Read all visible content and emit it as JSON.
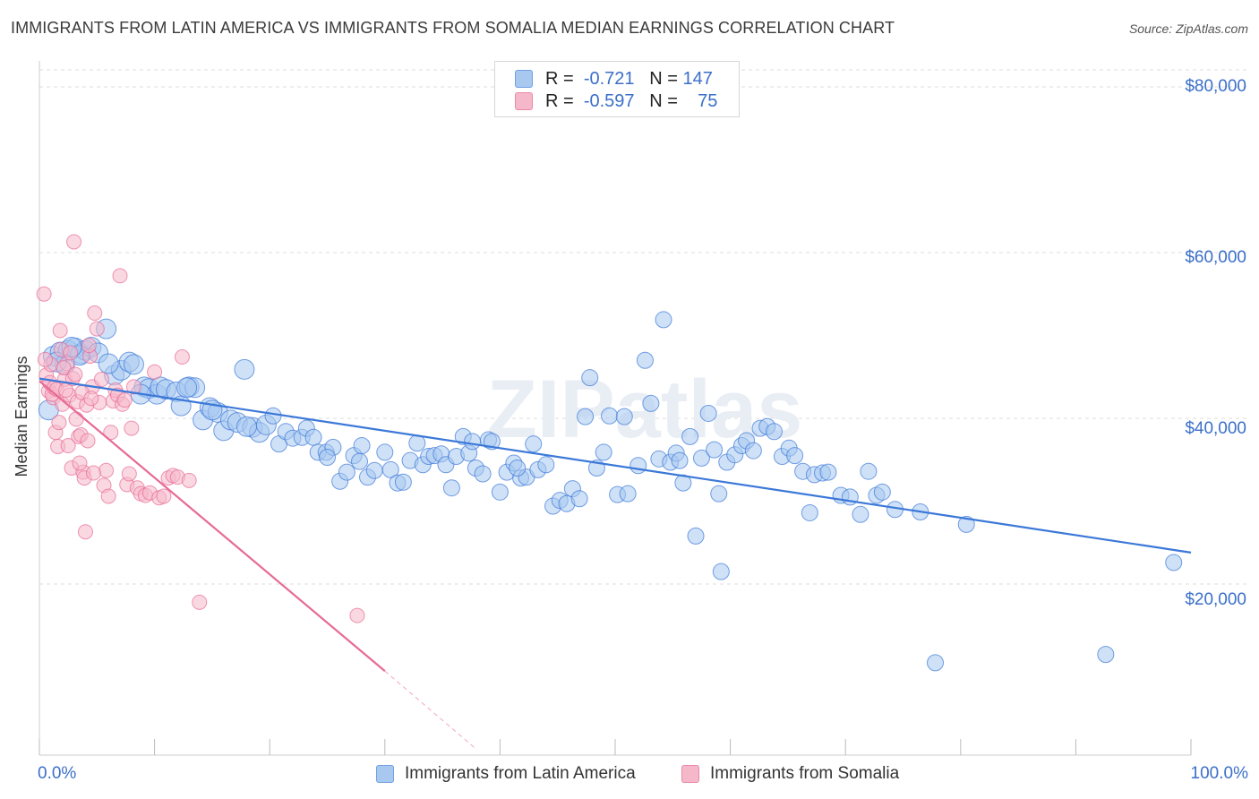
{
  "title": "IMMIGRANTS FROM LATIN AMERICA VS IMMIGRANTS FROM SOMALIA MEDIAN EARNINGS CORRELATION CHART",
  "source": "Source: ZipAtlas.com",
  "watermark": "ZIPatlas",
  "legend": {
    "rows": [
      {
        "r_label": "R =",
        "r_value": "-0.721",
        "n_label": "N =",
        "n_value": "147",
        "color": "#a8c8f0"
      },
      {
        "r_label": "R =",
        "r_value": "-0.597",
        "n_label": "N =",
        "n_value": "75",
        "color": "#f5b8cb"
      }
    ]
  },
  "bottom_legend": [
    {
      "label": "Immigrants from Latin America",
      "color": "#a8c8f0"
    },
    {
      "label": "Immigrants from Somalia",
      "color": "#f5b8cb"
    }
  ],
  "chart_data": {
    "type": "scatter",
    "title": "IMMIGRANTS FROM LATIN AMERICA VS IMMIGRANTS FROM SOMALIA MEDIAN EARNINGS CORRELATION CHART",
    "xlabel": "",
    "ylabel": "Median Earnings",
    "x_tick_labels": [
      "0.0%",
      "100.0%"
    ],
    "y_tick_labels": [
      "$20,000",
      "$40,000",
      "$60,000",
      "$80,000"
    ],
    "xlim": [
      0,
      100
    ],
    "ylim": [
      0,
      83000
    ],
    "grid": true,
    "legend_position": "top-center",
    "series": [
      {
        "name": "Immigrants from Latin America",
        "color": "#3b78d8",
        "fill": "#a8c8f0",
        "trend": {
          "x": [
            0,
            100
          ],
          "y": [
            44800,
            23800
          ]
        },
        "points": [
          [
            0.8,
            41000
          ],
          [
            1.2,
            47500
          ],
          [
            1.8,
            48000
          ],
          [
            2.2,
            46500
          ],
          [
            2.5,
            48200
          ],
          [
            3.1,
            48500
          ],
          [
            3.6,
            47800
          ],
          [
            4.0,
            48200
          ],
          [
            4.5,
            48600
          ],
          [
            5.1,
            47900
          ],
          [
            5.8,
            50800
          ],
          [
            6.5,
            45200
          ],
          [
            7.1,
            45800
          ],
          [
            7.8,
            46800
          ],
          [
            8.2,
            46500
          ],
          [
            9.1,
            43800
          ],
          [
            9.5,
            43600
          ],
          [
            10.2,
            42900
          ],
          [
            10.5,
            43800
          ],
          [
            11.0,
            43500
          ],
          [
            11.9,
            43200
          ],
          [
            12.3,
            41500
          ],
          [
            13.0,
            43800
          ],
          [
            13.5,
            43700
          ],
          [
            14.2,
            39800
          ],
          [
            14.8,
            41300
          ],
          [
            15.5,
            40700
          ],
          [
            16.0,
            38500
          ],
          [
            16.6,
            39800
          ],
          [
            17.2,
            39500
          ],
          [
            17.8,
            45900
          ],
          [
            18.5,
            38900
          ],
          [
            19.1,
            38300
          ],
          [
            19.7,
            39200
          ],
          [
            20.3,
            40300
          ],
          [
            20.8,
            36900
          ],
          [
            21.4,
            38400
          ],
          [
            22.0,
            37600
          ],
          [
            22.8,
            37700
          ],
          [
            23.2,
            38800
          ],
          [
            23.8,
            37700
          ],
          [
            24.2,
            35900
          ],
          [
            24.9,
            35900
          ],
          [
            25.5,
            36500
          ],
          [
            26.1,
            32400
          ],
          [
            26.7,
            33500
          ],
          [
            27.3,
            35500
          ],
          [
            28.0,
            36700
          ],
          [
            28.5,
            32900
          ],
          [
            29.1,
            33700
          ],
          [
            30.0,
            35900
          ],
          [
            30.5,
            33800
          ],
          [
            31.1,
            32200
          ],
          [
            31.6,
            32300
          ],
          [
            32.2,
            34900
          ],
          [
            32.8,
            37000
          ],
          [
            33.3,
            34400
          ],
          [
            33.8,
            35400
          ],
          [
            34.3,
            35500
          ],
          [
            34.9,
            35700
          ],
          [
            35.3,
            34400
          ],
          [
            35.8,
            31600
          ],
          [
            36.2,
            35400
          ],
          [
            36.8,
            37800
          ],
          [
            37.3,
            35800
          ],
          [
            37.9,
            34000
          ],
          [
            38.5,
            33300
          ],
          [
            39.0,
            37400
          ],
          [
            39.3,
            37200
          ],
          [
            40.0,
            31100
          ],
          [
            40.6,
            33500
          ],
          [
            41.2,
            34600
          ],
          [
            41.8,
            32800
          ],
          [
            42.3,
            32900
          ],
          [
            42.9,
            36900
          ],
          [
            43.3,
            33800
          ],
          [
            44.0,
            34400
          ],
          [
            44.6,
            29400
          ],
          [
            45.2,
            30100
          ],
          [
            45.8,
            29700
          ],
          [
            46.3,
            31500
          ],
          [
            46.9,
            30300
          ],
          [
            47.4,
            40200
          ],
          [
            47.8,
            44900
          ],
          [
            48.4,
            34000
          ],
          [
            49.0,
            35900
          ],
          [
            49.5,
            40300
          ],
          [
            50.2,
            30800
          ],
          [
            50.8,
            40200
          ],
          [
            51.1,
            30900
          ],
          [
            52.0,
            34300
          ],
          [
            52.6,
            47000
          ],
          [
            53.1,
            41800
          ],
          [
            53.8,
            35100
          ],
          [
            54.2,
            51900
          ],
          [
            54.8,
            34700
          ],
          [
            55.3,
            35800
          ],
          [
            55.9,
            32200
          ],
          [
            56.5,
            37800
          ],
          [
            57.0,
            25800
          ],
          [
            57.5,
            35200
          ],
          [
            58.1,
            40600
          ],
          [
            58.6,
            36200
          ],
          [
            59.0,
            30900
          ],
          [
            59.2,
            21500
          ],
          [
            59.7,
            34700
          ],
          [
            60.4,
            35600
          ],
          [
            61.0,
            36700
          ],
          [
            61.4,
            37300
          ],
          [
            62.0,
            36100
          ],
          [
            62.6,
            38800
          ],
          [
            63.2,
            39000
          ],
          [
            63.8,
            38400
          ],
          [
            64.5,
            35400
          ],
          [
            65.1,
            36400
          ],
          [
            65.6,
            35500
          ],
          [
            66.3,
            33600
          ],
          [
            66.9,
            28600
          ],
          [
            67.3,
            33200
          ],
          [
            68.0,
            33400
          ],
          [
            68.5,
            33500
          ],
          [
            69.6,
            30700
          ],
          [
            70.4,
            30500
          ],
          [
            71.3,
            28400
          ],
          [
            72.0,
            33600
          ],
          [
            72.7,
            30700
          ],
          [
            73.2,
            31100
          ],
          [
            74.3,
            29000
          ],
          [
            76.5,
            28700
          ],
          [
            77.8,
            10500
          ],
          [
            80.5,
            27200
          ],
          [
            92.6,
            11500
          ],
          [
            98.5,
            22600
          ],
          [
            3.5,
            47600
          ],
          [
            6.0,
            46600
          ],
          [
            1.5,
            46800
          ],
          [
            2.8,
            48600
          ],
          [
            8.8,
            42900
          ],
          [
            12.8,
            43700
          ],
          [
            15.0,
            41000
          ],
          [
            18.0,
            39000
          ],
          [
            25.0,
            35300
          ],
          [
            27.8,
            34800
          ],
          [
            37.6,
            37200
          ],
          [
            41.5,
            34000
          ],
          [
            55.6,
            34900
          ]
        ]
      },
      {
        "name": "Immigrants from Somalia",
        "color": "#e76a95",
        "fill": "#f5b8cb",
        "trend": {
          "x": [
            0,
            30
          ],
          "y": [
            44500,
            9500
          ]
        },
        "trend_dashed": {
          "x": [
            30,
            38
          ],
          "y": [
            9500,
            0
          ]
        },
        "points": [
          [
            0.4,
            55000
          ],
          [
            0.6,
            45200
          ],
          [
            0.8,
            43300
          ],
          [
            1.0,
            46500
          ],
          [
            1.2,
            42500
          ],
          [
            1.4,
            38300
          ],
          [
            1.6,
            36600
          ],
          [
            1.8,
            50600
          ],
          [
            2.0,
            41700
          ],
          [
            2.2,
            44700
          ],
          [
            2.4,
            46600
          ],
          [
            2.6,
            42800
          ],
          [
            2.8,
            34000
          ],
          [
            3.0,
            61300
          ],
          [
            3.2,
            39900
          ],
          [
            3.4,
            37800
          ],
          [
            3.6,
            38000
          ],
          [
            3.8,
            33500
          ],
          [
            4.0,
            26300
          ],
          [
            4.2,
            37300
          ],
          [
            4.4,
            47500
          ],
          [
            4.6,
            43800
          ],
          [
            4.8,
            52700
          ],
          [
            5.0,
            50800
          ],
          [
            5.2,
            41900
          ],
          [
            5.4,
            44700
          ],
          [
            5.6,
            31900
          ],
          [
            5.8,
            33700
          ],
          [
            6.0,
            30600
          ],
          [
            6.2,
            38300
          ],
          [
            6.4,
            42100
          ],
          [
            6.6,
            43400
          ],
          [
            6.8,
            42800
          ],
          [
            7.0,
            57200
          ],
          [
            7.2,
            41700
          ],
          [
            7.4,
            42200
          ],
          [
            7.6,
            32000
          ],
          [
            7.8,
            33300
          ],
          [
            8.0,
            38800
          ],
          [
            8.2,
            43800
          ],
          [
            8.5,
            31600
          ],
          [
            8.8,
            30900
          ],
          [
            9.2,
            30700
          ],
          [
            9.6,
            31000
          ],
          [
            10.0,
            45600
          ],
          [
            10.4,
            30400
          ],
          [
            10.8,
            30600
          ],
          [
            11.2,
            32800
          ],
          [
            11.6,
            33100
          ],
          [
            12.0,
            32900
          ],
          [
            12.4,
            47400
          ],
          [
            13.0,
            32500
          ],
          [
            13.9,
            17800
          ],
          [
            27.6,
            16200
          ],
          [
            0.5,
            47100
          ],
          [
            0.9,
            44300
          ],
          [
            1.1,
            42900
          ],
          [
            1.3,
            43700
          ],
          [
            1.5,
            43500
          ],
          [
            1.7,
            39500
          ],
          [
            1.9,
            48300
          ],
          [
            2.1,
            46100
          ],
          [
            2.3,
            43400
          ],
          [
            2.5,
            36700
          ],
          [
            2.7,
            47900
          ],
          [
            2.9,
            44800
          ],
          [
            3.1,
            45300
          ],
          [
            3.3,
            42000
          ],
          [
            3.5,
            34600
          ],
          [
            3.7,
            43100
          ],
          [
            3.9,
            32800
          ],
          [
            4.1,
            41600
          ],
          [
            4.3,
            48800
          ],
          [
            4.5,
            42400
          ],
          [
            4.7,
            33400
          ]
        ]
      }
    ]
  }
}
